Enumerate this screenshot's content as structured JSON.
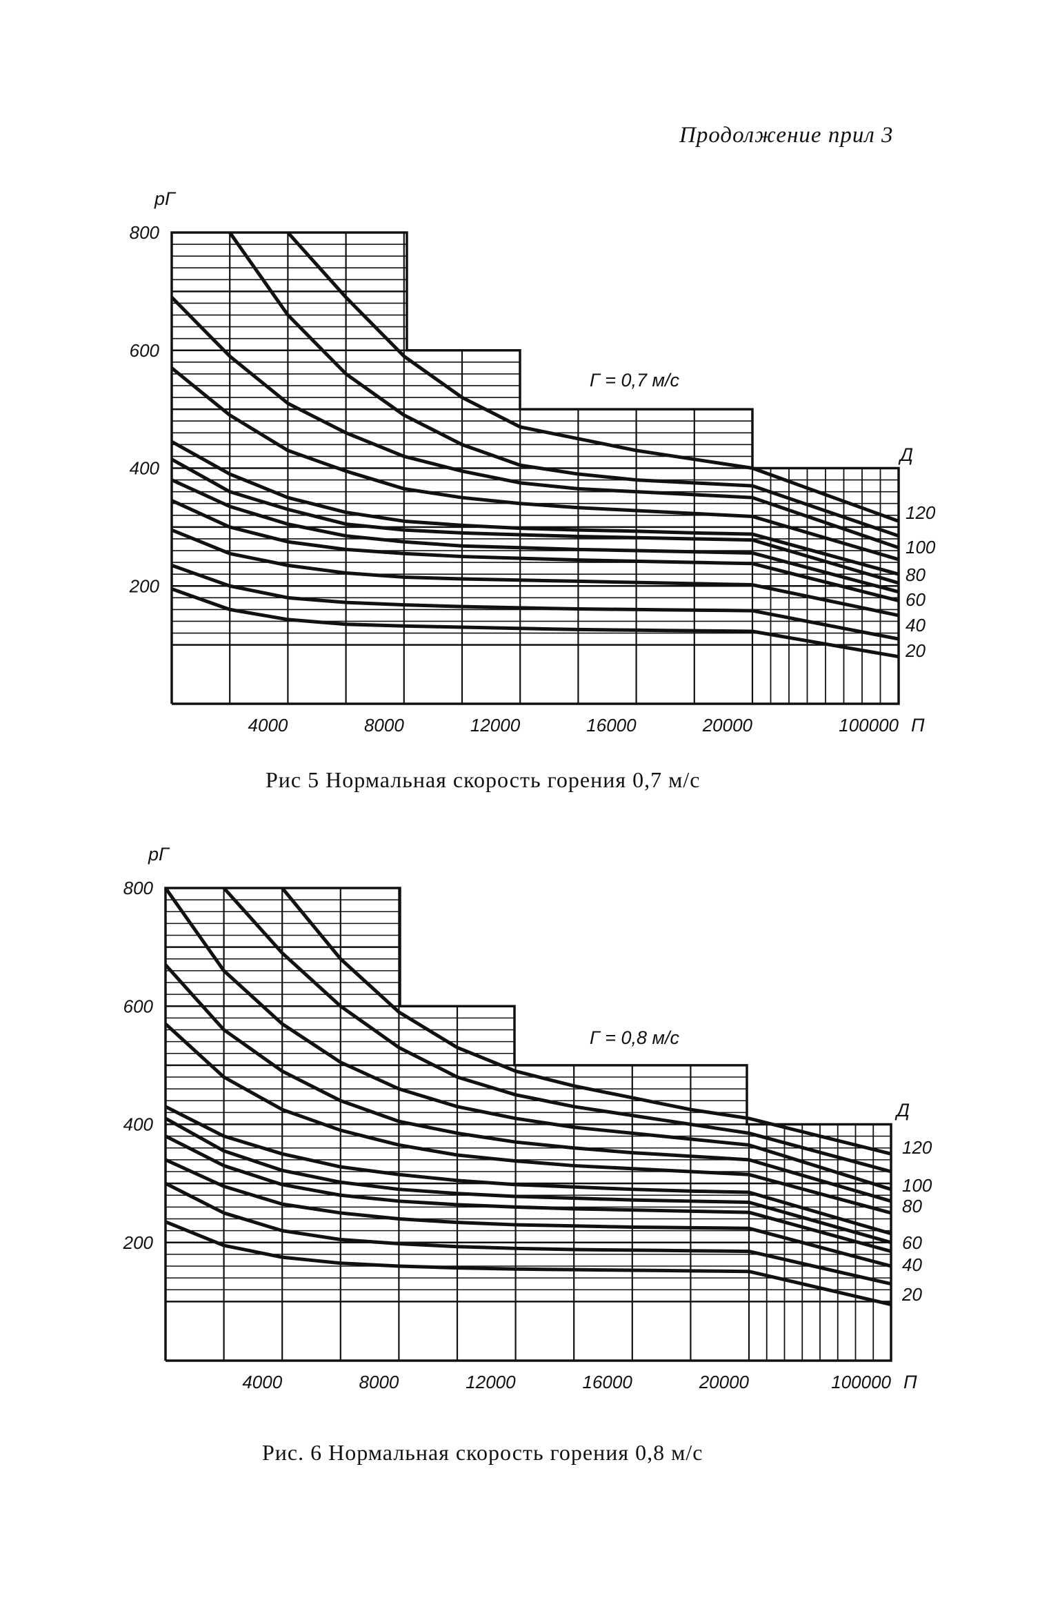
{
  "page": {
    "header": "Продолжение прил 3"
  },
  "chart_data": [
    {
      "type": "line",
      "title": "Рис 5 Нормальная скорость горения 0,7 м/с",
      "caption": "Рис 5  Нормальная скорость горения 0,7 м/с",
      "annotation": "Г = 0,7 м/с",
      "xlabel": "П",
      "ylabel": "pГ",
      "series_label_title": "Д",
      "x": [
        0,
        2000,
        4000,
        6000,
        8000,
        10000,
        12000,
        14000,
        16000,
        18000,
        20000,
        100000
      ],
      "x_tick_labels": [
        "4000",
        "8000",
        "12000",
        "16000",
        "20000",
        "100000"
      ],
      "y_tick_labels": [
        "200",
        "400",
        "600",
        "800"
      ],
      "ylim": [
        0,
        800
      ],
      "series_labels_right": [
        "120",
        "100",
        "80",
        "60",
        "40",
        "20"
      ],
      "grid": true,
      "series": [
        {
          "name": "c1",
          "values": [
            null,
            null,
            800,
            690,
            590,
            520,
            470,
            450,
            430,
            415,
            400,
            310
          ]
        },
        {
          "name": "c2",
          "values": [
            null,
            800,
            660,
            560,
            490,
            440,
            405,
            390,
            380,
            375,
            370,
            285
          ]
        },
        {
          "name": "c3",
          "values": [
            690,
            590,
            510,
            460,
            420,
            395,
            375,
            365,
            360,
            355,
            350,
            265
          ]
        },
        {
          "name": "c4",
          "values": [
            570,
            490,
            430,
            395,
            365,
            350,
            340,
            333,
            328,
            323,
            318,
            245
          ]
        },
        {
          "name": "c5",
          "values": [
            445,
            390,
            350,
            325,
            310,
            303,
            298,
            295,
            293,
            290,
            288,
            220
          ]
        },
        {
          "name": "c6",
          "values": [
            415,
            360,
            330,
            305,
            295,
            290,
            287,
            284,
            282,
            280,
            278,
            205
          ]
        },
        {
          "name": "c7",
          "values": [
            380,
            335,
            305,
            285,
            275,
            268,
            265,
            262,
            260,
            258,
            256,
            190
          ]
        },
        {
          "name": "c8",
          "values": [
            345,
            300,
            275,
            262,
            255,
            250,
            247,
            244,
            242,
            240,
            238,
            175
          ]
        },
        {
          "name": "c9",
          "values": [
            295,
            255,
            235,
            222,
            215,
            212,
            210,
            208,
            206,
            204,
            202,
            150
          ]
        },
        {
          "name": "c10",
          "values": [
            235,
            200,
            180,
            172,
            168,
            165,
            163,
            161,
            160,
            159,
            158,
            110
          ]
        },
        {
          "name": "c11",
          "values": [
            195,
            160,
            143,
            135,
            132,
            130,
            128,
            126,
            125,
            124,
            123,
            80
          ]
        }
      ]
    },
    {
      "type": "line",
      "title": "Рис. 6 Нормальная скорость горения 0,8 м/с",
      "caption": "Рис. 6  Нормальная скорость горения 0,8 м/с",
      "annotation": "Г = 0,8 м/с",
      "xlabel": "П",
      "ylabel": "pГ",
      "series_label_title": "Д",
      "x": [
        0,
        2000,
        4000,
        6000,
        8000,
        10000,
        12000,
        14000,
        16000,
        18000,
        20000,
        100000
      ],
      "x_tick_labels": [
        "4000",
        "8000",
        "12000",
        "16000",
        "20000",
        "100000"
      ],
      "y_tick_labels": [
        "200",
        "400",
        "600",
        "800"
      ],
      "ylim": [
        0,
        800
      ],
      "series_labels_right": [
        "120",
        "100",
        "80",
        "60",
        "40",
        "20"
      ],
      "grid": true,
      "series": [
        {
          "name": "c1",
          "values": [
            null,
            null,
            800,
            680,
            590,
            530,
            490,
            465,
            445,
            425,
            410,
            350
          ]
        },
        {
          "name": "c2",
          "values": [
            null,
            800,
            690,
            600,
            530,
            480,
            450,
            430,
            415,
            400,
            385,
            320
          ]
        },
        {
          "name": "c3",
          "values": [
            800,
            660,
            570,
            505,
            460,
            430,
            410,
            395,
            385,
            375,
            365,
            290
          ]
        },
        {
          "name": "c4",
          "values": [
            670,
            560,
            490,
            440,
            405,
            385,
            370,
            360,
            352,
            346,
            340,
            270
          ]
        },
        {
          "name": "c5",
          "values": [
            570,
            480,
            425,
            390,
            365,
            348,
            338,
            330,
            325,
            320,
            315,
            250
          ]
        },
        {
          "name": "c6",
          "values": [
            430,
            380,
            350,
            328,
            315,
            305,
            298,
            294,
            290,
            287,
            285,
            215
          ]
        },
        {
          "name": "c7",
          "values": [
            410,
            355,
            322,
            302,
            290,
            283,
            278,
            275,
            272,
            270,
            268,
            200
          ]
        },
        {
          "name": "c8",
          "values": [
            380,
            330,
            298,
            280,
            270,
            264,
            260,
            257,
            255,
            253,
            251,
            185
          ]
        },
        {
          "name": "c9",
          "values": [
            340,
            295,
            265,
            250,
            240,
            234,
            230,
            228,
            226,
            225,
            224,
            160
          ]
        },
        {
          "name": "c10",
          "values": [
            300,
            250,
            220,
            205,
            198,
            193,
            190,
            188,
            187,
            186,
            185,
            130
          ]
        },
        {
          "name": "c11",
          "values": [
            235,
            195,
            175,
            165,
            160,
            157,
            155,
            154,
            153,
            152,
            151,
            95
          ]
        }
      ]
    }
  ]
}
